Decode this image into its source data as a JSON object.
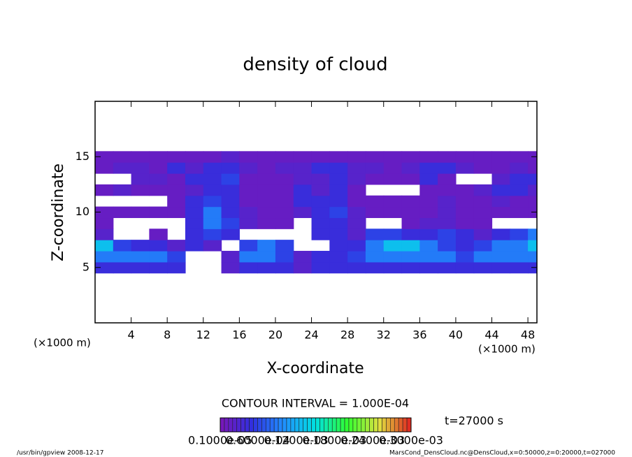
{
  "chart_data": {
    "type": "heatmap",
    "title": "density of cloud",
    "x_label": "X-coordinate",
    "y_label": "Z-coordinate",
    "x_unit_left": "(×1000 m)",
    "x_unit_right": "(×1000 m)",
    "contour_text": "CONTOUR INTERVAL = 1.000E-04",
    "time_text": "t=27000 s",
    "footer_left": "/usr/bin/gpview  2008-12-17",
    "footer_right": "MarsCond_DensCloud.nc@DensCloud,x=0:50000,z=0:20000,t=027000",
    "xlim": [
      0,
      49
    ],
    "ylim": [
      0,
      20
    ],
    "xticks": [
      4,
      8,
      12,
      16,
      20,
      24,
      28,
      32,
      36,
      40,
      44,
      48
    ],
    "yticks": [
      5,
      10,
      15
    ],
    "x": [
      1,
      3,
      5,
      7,
      9,
      11,
      13,
      15,
      17,
      19,
      21,
      23,
      25,
      27,
      29,
      31,
      33,
      35,
      37,
      39,
      41,
      43,
      45,
      47,
      49
    ],
    "z": [
      5,
      6,
      7,
      8,
      9,
      10,
      11,
      12,
      13,
      14,
      15
    ],
    "values": [
      [
        4.5e-05,
        4.5e-05,
        4.5e-05,
        4.5e-05,
        4.5e-05,
        null,
        null,
        2.5e-05,
        4.5e-05,
        4.5e-05,
        4.5e-05,
        2.5e-05,
        4.5e-05,
        4.5e-05,
        4.5e-05,
        4.5e-05,
        4.5e-05,
        4.5e-05,
        4.5e-05,
        4.5e-05,
        4.5e-05,
        4.5e-05,
        4.5e-05,
        4.5e-05,
        4.5e-05
      ],
      [
        9e-05,
        9e-05,
        9e-05,
        9e-05,
        6e-05,
        null,
        null,
        2.5e-05,
        9e-05,
        9e-05,
        6e-05,
        2.5e-05,
        4.5e-05,
        4.5e-05,
        6e-05,
        9e-05,
        9e-05,
        9e-05,
        9e-05,
        9e-05,
        6e-05,
        9e-05,
        9e-05,
        9e-05,
        9e-05
      ],
      [
        0.00013,
        6e-05,
        4.5e-05,
        4.5e-05,
        2.5e-05,
        4.5e-05,
        2.5e-05,
        null,
        6e-05,
        9e-05,
        6e-05,
        null,
        null,
        4.5e-05,
        4.5e-05,
        9e-05,
        0.00013,
        0.00013,
        9e-05,
        6e-05,
        4.5e-05,
        6e-05,
        9e-05,
        9e-05,
        0.00013
      ],
      [
        2.5e-05,
        null,
        null,
        1.5e-05,
        null,
        4.5e-05,
        6e-05,
        4.5e-05,
        null,
        null,
        null,
        null,
        4.5e-05,
        4.5e-05,
        2.5e-05,
        6e-05,
        6e-05,
        4.5e-05,
        4.5e-05,
        6e-05,
        4.5e-05,
        2.5e-05,
        4.5e-05,
        6e-05,
        9e-05
      ],
      [
        1.5e-05,
        null,
        null,
        null,
        null,
        4.5e-05,
        9e-05,
        6e-05,
        2.5e-05,
        1.5e-05,
        1.5e-05,
        null,
        4.5e-05,
        4.5e-05,
        2.5e-05,
        null,
        null,
        1.5e-05,
        2.5e-05,
        2.5e-05,
        1.5e-05,
        1.5e-05,
        null,
        null,
        null
      ],
      [
        1.5e-05,
        1.5e-05,
        1.5e-05,
        1.5e-05,
        1.5e-05,
        4.5e-05,
        9e-05,
        4.5e-05,
        2.5e-05,
        1.5e-05,
        1.5e-05,
        2.5e-05,
        4.5e-05,
        6e-05,
        2.5e-05,
        1.5e-05,
        1.5e-05,
        1.5e-05,
        1.5e-05,
        2.5e-05,
        1.5e-05,
        1.5e-05,
        1.5e-05,
        1.5e-05,
        1.5e-05
      ],
      [
        null,
        null,
        null,
        null,
        1.5e-05,
        4.5e-05,
        6e-05,
        4.5e-05,
        1.5e-05,
        1.5e-05,
        1.5e-05,
        4.5e-05,
        4.5e-05,
        4.5e-05,
        1.5e-05,
        1.5e-05,
        1.5e-05,
        1.5e-05,
        1.5e-05,
        2.5e-05,
        1.5e-05,
        1.5e-05,
        2.5e-05,
        1.5e-05,
        1.5e-05
      ],
      [
        1.5e-05,
        2.5e-05,
        1.5e-05,
        1.5e-05,
        1.5e-05,
        2.5e-05,
        4.5e-05,
        4.5e-05,
        1.5e-05,
        1.5e-05,
        1.5e-05,
        4.5e-05,
        2.5e-05,
        4.5e-05,
        1.5e-05,
        null,
        null,
        null,
        1.5e-05,
        1.5e-05,
        1.5e-05,
        2.5e-05,
        4.5e-05,
        4.5e-05,
        2.5e-05
      ],
      [
        null,
        null,
        2.5e-05,
        2.5e-05,
        1.5e-05,
        4.5e-05,
        4.5e-05,
        6e-05,
        1.5e-05,
        1.5e-05,
        1.5e-05,
        2.5e-05,
        2.5e-05,
        4.5e-05,
        2.5e-05,
        1.5e-05,
        1.5e-05,
        1.5e-05,
        4.5e-05,
        1.5e-05,
        null,
        null,
        2.5e-05,
        4.5e-05,
        4.5e-05
      ],
      [
        1.5e-05,
        2.5e-05,
        2.5e-05,
        1.5e-05,
        4.5e-05,
        2.5e-05,
        4.5e-05,
        4.5e-05,
        2.5e-05,
        1.5e-05,
        2.5e-05,
        2.5e-05,
        4.5e-05,
        4.5e-05,
        2.5e-05,
        2.5e-05,
        1.5e-05,
        2.5e-05,
        4.5e-05,
        4.5e-05,
        2.5e-05,
        1.5e-05,
        1.5e-05,
        2.5e-05,
        1.5e-05
      ],
      [
        1.5e-05,
        1.5e-05,
        1.5e-05,
        1.5e-05,
        1.5e-05,
        1.5e-05,
        1.5e-05,
        2.5e-05,
        1.5e-05,
        1.5e-05,
        1.5e-05,
        1.5e-05,
        1.5e-05,
        1.5e-05,
        1.5e-05,
        1.5e-05,
        1.5e-05,
        1.5e-05,
        1.5e-05,
        1.5e-05,
        1.5e-05,
        1.5e-05,
        1.5e-05,
        1.5e-05,
        1.5e-05
      ]
    ],
    "colors": [
      "#7b16b8",
      "#3030e0",
      "#2090ff",
      "#00e0e0",
      "#30ff30",
      "#e0e040",
      "#e02020"
    ],
    "colorbar_lim": [
      1e-06,
      0.0003
    ],
    "colorbar_ticks": [
      {
        "value": 1e-06,
        "label": "0.1000e-05"
      },
      {
        "value": 6e-05,
        "label": "0.6000e-04"
      },
      {
        "value": 0.00012,
        "label": "0.1200e-03"
      },
      {
        "value": 0.00018,
        "label": "0.1800e-03"
      },
      {
        "value": 0.00024,
        "label": "0.2400e-03"
      },
      {
        "value": 0.0003,
        "label": "0.3000e-03"
      }
    ]
  }
}
